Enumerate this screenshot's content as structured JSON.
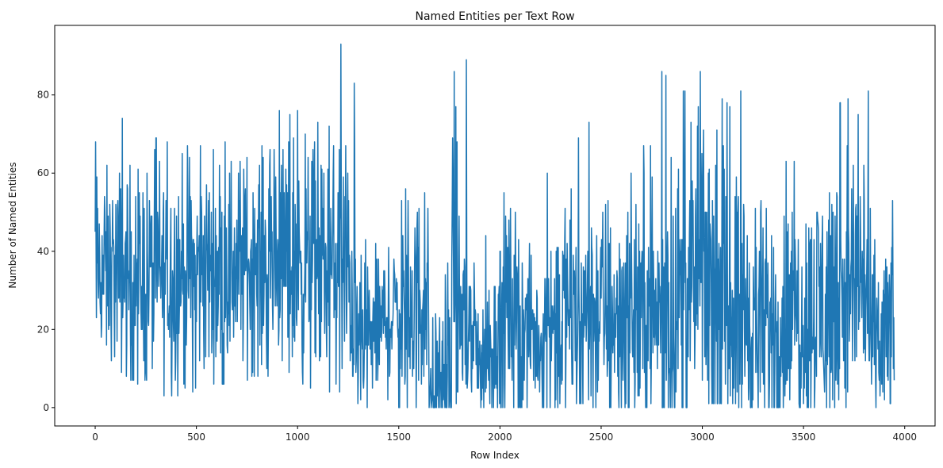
{
  "chart_data": {
    "type": "line",
    "title": "Named Entities per Text Row",
    "xlabel": "Row Index",
    "ylabel": "Number of Named Entities",
    "xlim": [
      -200,
      4150
    ],
    "ylim": [
      -4.7,
      97.8
    ],
    "xticks": [
      0,
      500,
      1000,
      1500,
      2000,
      2500,
      3000,
      3500,
      4000
    ],
    "yticks": [
      0,
      20,
      40,
      60,
      80
    ],
    "grid": false,
    "legend": "none",
    "color": "#1f77b4",
    "segments": [
      {
        "x": [
          0,
          300
        ],
        "min": [
          15,
          2
        ],
        "max": [
          68,
          66
        ],
        "mid": [
          35,
          33
        ]
      },
      {
        "x": [
          300,
          600
        ],
        "min": [
          2,
          6
        ],
        "max": [
          69,
          66
        ],
        "mid": [
          33,
          36
        ]
      },
      {
        "x": [
          600,
          900
        ],
        "min": [
          6,
          8
        ],
        "max": [
          68,
          66
        ],
        "mid": [
          36,
          38
        ]
      },
      {
        "x": [
          900,
          1200
        ],
        "min": [
          8,
          3
        ],
        "max": [
          76,
          71
        ],
        "mid": [
          38,
          35
        ]
      },
      {
        "x": [
          1200,
          1290
        ],
        "min": [
          3,
          9
        ],
        "max": [
          93,
          83
        ],
        "mid": [
          35,
          30
        ]
      },
      {
        "x": [
          1290,
          1500
        ],
        "min": [
          0,
          0
        ],
        "max": [
          44,
          40
        ],
        "mid": [
          15,
          25
        ]
      },
      {
        "x": [
          1500,
          1650
        ],
        "min": [
          0,
          0
        ],
        "max": [
          69,
          53
        ],
        "mid": [
          25,
          28
        ]
      },
      {
        "x": [
          1650,
          1760
        ],
        "min": [
          0,
          0
        ],
        "max": [
          40,
          58
        ],
        "mid": [
          5,
          10
        ]
      },
      {
        "x": [
          1760,
          1900
        ],
        "min": [
          0,
          5
        ],
        "max": [
          89,
          63
        ],
        "mid": [
          30,
          15
        ]
      },
      {
        "x": [
          1900,
          2000
        ],
        "min": [
          0,
          0
        ],
        "max": [
          41,
          50
        ],
        "mid": [
          10,
          20
        ]
      },
      {
        "x": [
          2000,
          2210
        ],
        "min": [
          0,
          0
        ],
        "max": [
          63,
          33
        ],
        "mid": [
          30,
          15
        ]
      },
      {
        "x": [
          2210,
          2450
        ],
        "min": [
          0,
          1
        ],
        "max": [
          58,
          73
        ],
        "mid": [
          22,
          25
        ]
      },
      {
        "x": [
          2450,
          2800
        ],
        "min": [
          0,
          0
        ],
        "max": [
          64,
          68
        ],
        "mid": [
          25,
          24
        ]
      },
      {
        "x": [
          2800,
          3050
        ],
        "min": [
          0,
          1
        ],
        "max": [
          86,
          74
        ],
        "mid": [
          24,
          35
        ]
      },
      {
        "x": [
          3050,
          3300
        ],
        "min": [
          1,
          0
        ],
        "max": [
          81,
          69
        ],
        "mid": [
          30,
          20
        ]
      },
      {
        "x": [
          3300,
          3550
        ],
        "min": [
          0,
          0
        ],
        "max": [
          64,
          62
        ],
        "mid": [
          20,
          25
        ]
      },
      {
        "x": [
          3550,
          3820
        ],
        "min": [
          0,
          0
        ],
        "max": [
          75,
          81
        ],
        "mid": [
          25,
          35
        ]
      },
      {
        "x": [
          3820,
          3950
        ],
        "min": [
          0,
          1
        ],
        "max": [
          56,
          58
        ],
        "mid": [
          15,
          20
        ]
      }
    ]
  }
}
